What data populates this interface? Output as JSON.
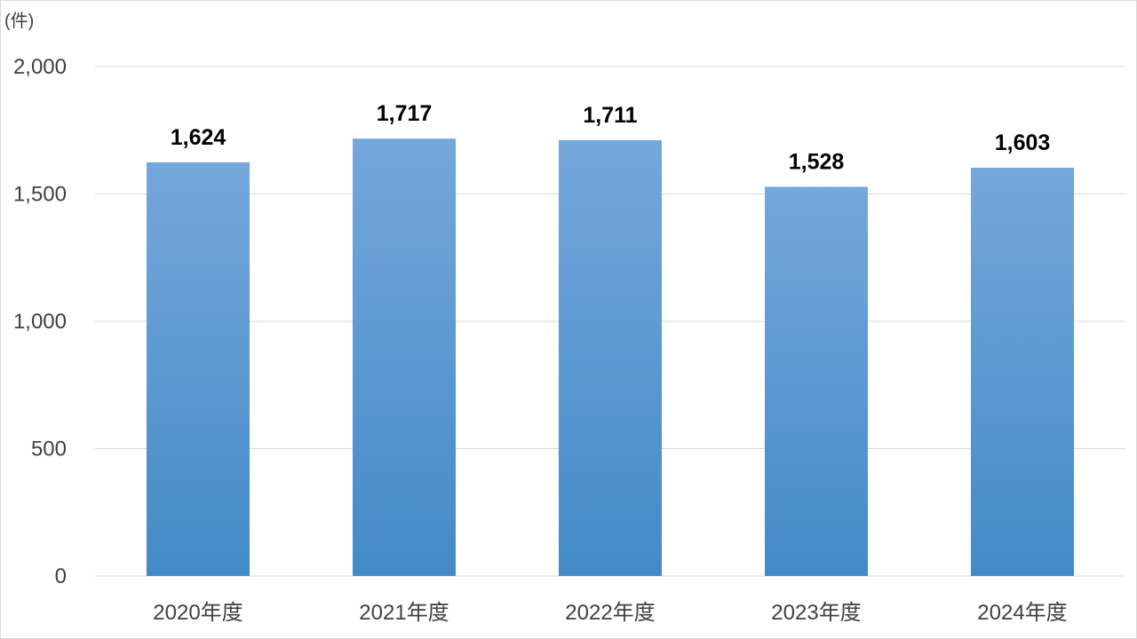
{
  "chart_data": {
    "type": "bar",
    "unit_label": "(件)",
    "categories": [
      "2020年度",
      "2021年度",
      "2022年度",
      "2023年度",
      "2024年度"
    ],
    "values": [
      1624,
      1717,
      1711,
      1528,
      1603
    ],
    "value_labels": [
      "1,624",
      "1,717",
      "1,711",
      "1,528",
      "1,603"
    ],
    "ylim": [
      0,
      2000
    ],
    "yticks": [
      0,
      500,
      1000,
      1500,
      2000
    ],
    "ytick_labels": [
      "0",
      "500",
      "1,000",
      "1,500",
      "2,000"
    ],
    "grid": true,
    "legend": "none",
    "colors": {
      "bar_top": "#75a7db",
      "bar_bottom": "#438ac7",
      "grid": "#d9d9d9",
      "axis_text": "#404040",
      "data_label": "#000000"
    }
  }
}
